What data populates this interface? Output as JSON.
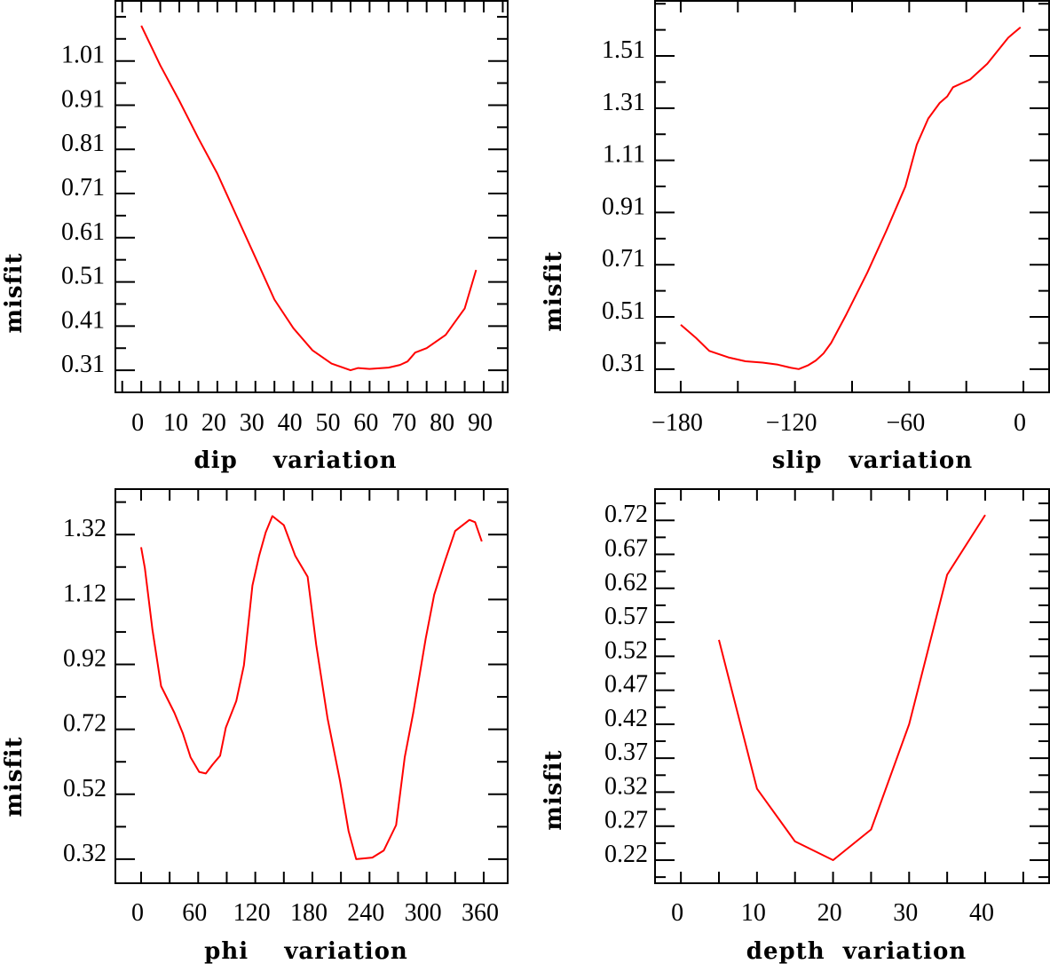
{
  "chart_data": [
    {
      "type": "line",
      "id": "dip",
      "xlabel": "dip    variation",
      "ylabel": "misfit",
      "xlim": [
        -6.8,
        96.3
      ],
      "ylim": [
        0.26,
        1.146
      ],
      "xticks": [
        0,
        10,
        20,
        30,
        40,
        50,
        60,
        70,
        80,
        90
      ],
      "xtick_labels": [
        "0",
        "10",
        "20",
        "30",
        "40",
        "50",
        "60",
        "70",
        "80",
        "90"
      ],
      "xminor": 5,
      "yticks": [
        0.31,
        0.41,
        0.51,
        0.61,
        0.71,
        0.81,
        0.91,
        1.01
      ],
      "ytick_labels": [
        "0.31",
        "0.41",
        "0.51",
        "0.61",
        "0.71",
        "0.81",
        "0.91",
        "1.01"
      ],
      "yminor": 0.05,
      "color": "#ff0000",
      "x": [
        0,
        5,
        10,
        15,
        20,
        25,
        30,
        35,
        40,
        45,
        50,
        55,
        57,
        60,
        65,
        68,
        70,
        72,
        75,
        80,
        85,
        88
      ],
      "y": [
        1.09,
        1.0,
        0.92,
        0.835,
        0.755,
        0.66,
        0.565,
        0.47,
        0.405,
        0.355,
        0.325,
        0.31,
        0.315,
        0.313,
        0.316,
        0.322,
        0.33,
        0.35,
        0.36,
        0.39,
        0.45,
        0.537
      ]
    },
    {
      "type": "line",
      "id": "slip",
      "xlabel": "slip   variation",
      "ylabel": "misfit",
      "xlim": [
        -193.5,
        13.5
      ],
      "ylim": [
        0.221,
        1.721
      ],
      "xticks": [
        -180,
        -120,
        -60,
        0
      ],
      "xtick_labels": [
        "−180",
        "−120",
        "−60",
        "0"
      ],
      "xminor": 30,
      "yticks": [
        0.31,
        0.51,
        0.71,
        0.91,
        1.11,
        1.31,
        1.51
      ],
      "ytick_labels": [
        "0.31",
        "0.51",
        "0.71",
        "0.91",
        "1.11",
        "1.31",
        "1.51"
      ],
      "yminor": 0.1,
      "color": "#ff0000",
      "x": [
        -180,
        -172,
        -165,
        -155,
        -146,
        -137,
        -129,
        -122,
        -118,
        -113,
        -109,
        -105,
        -101,
        -93,
        -82,
        -72,
        -62,
        -56,
        -50,
        -44,
        -40,
        -37,
        -28,
        -19,
        -8,
        -1.5
      ],
      "y": [
        0.48,
        0.43,
        0.38,
        0.355,
        0.34,
        0.335,
        0.327,
        0.315,
        0.31,
        0.325,
        0.343,
        0.37,
        0.41,
        0.52,
        0.68,
        0.84,
        1.01,
        1.17,
        1.27,
        1.33,
        1.355,
        1.39,
        1.42,
        1.48,
        1.58,
        1.62
      ]
    },
    {
      "type": "line",
      "id": "phi",
      "xlabel": "phi    variation",
      "ylabel": "misfit",
      "xlim": [
        -27,
        385.2
      ],
      "ylim": [
        0.246,
        1.46
      ],
      "xticks": [
        0,
        60,
        120,
        180,
        240,
        300,
        360
      ],
      "xtick_labels": [
        "0",
        "60",
        "120",
        "180",
        "240",
        "300",
        "360"
      ],
      "xminor": 30,
      "yticks": [
        0.32,
        0.52,
        0.72,
        0.92,
        1.12,
        1.32
      ],
      "ytick_labels": [
        "0.32",
        "0.52",
        "0.72",
        "0.92",
        "1.12",
        "1.32"
      ],
      "yminor": 0.1,
      "color": "#ff0000",
      "x": [
        0,
        4,
        12,
        21,
        35,
        44,
        52,
        61,
        68,
        75,
        83,
        89,
        100,
        108,
        117,
        124,
        131,
        138,
        150,
        162,
        175,
        184,
        196,
        209,
        218,
        226,
        243,
        255,
        268,
        277,
        286,
        299,
        308,
        319,
        330,
        345,
        351,
        358
      ],
      "y": [
        1.281,
        1.217,
        1.026,
        0.853,
        0.771,
        0.707,
        0.634,
        0.589,
        0.584,
        0.611,
        0.639,
        0.725,
        0.807,
        0.917,
        1.163,
        1.254,
        1.327,
        1.377,
        1.349,
        1.254,
        1.19,
        0.98,
        0.753,
        0.561,
        0.407,
        0.32,
        0.325,
        0.347,
        0.425,
        0.634,
        0.771,
        0.999,
        1.135,
        1.236,
        1.331,
        1.365,
        1.358,
        1.299
      ]
    },
    {
      "type": "line",
      "id": "depth",
      "xlabel": "depth  variation",
      "ylabel": "misfit",
      "xlim": [
        -3.4,
        48.4
      ],
      "ylim": [
        0.186,
        0.766
      ],
      "xticks": [
        0,
        10,
        20,
        30,
        40
      ],
      "xtick_labels": [
        "0",
        "10",
        "20",
        "30",
        "40"
      ],
      "xminor": 5,
      "yticks": [
        0.22,
        0.27,
        0.32,
        0.37,
        0.42,
        0.47,
        0.52,
        0.57,
        0.62,
        0.67,
        0.72
      ],
      "ytick_labels": [
        "0.22",
        "0.27",
        "0.32",
        "0.37",
        "0.42",
        "0.47",
        "0.52",
        "0.57",
        "0.62",
        "0.67",
        "0.72"
      ],
      "yminor": 0.025,
      "color": "#ff0000",
      "x": [
        5,
        10,
        15,
        20,
        25,
        30,
        35,
        40
      ],
      "y": [
        0.544,
        0.325,
        0.2475,
        0.22,
        0.265,
        0.42,
        0.64,
        0.728
      ]
    }
  ]
}
